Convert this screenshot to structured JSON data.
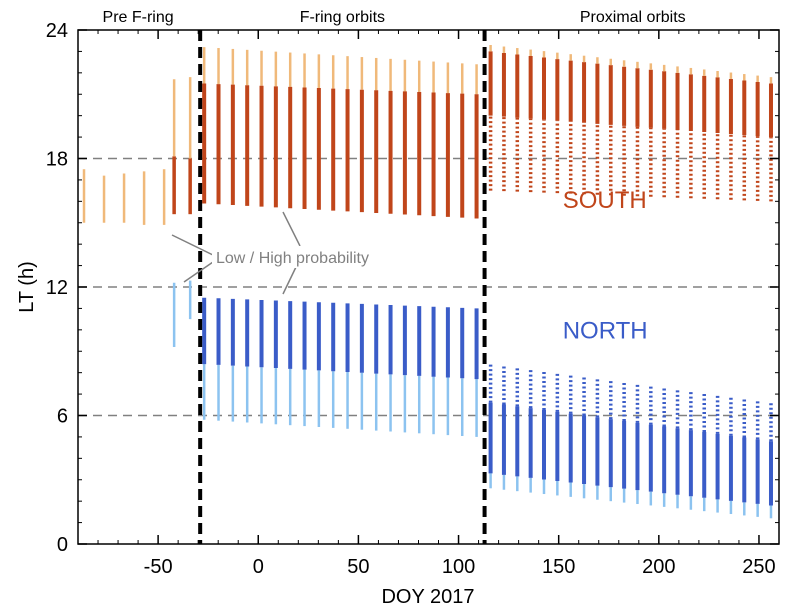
{
  "chart_data": {
    "type": "line",
    "xlabel": "DOY 2017",
    "ylabel": "LT (h)",
    "xlim": [
      -90,
      260
    ],
    "ylim": [
      0,
      24
    ],
    "xticks": [
      -50,
      0,
      50,
      100,
      150,
      200,
      250
    ],
    "yticks": [
      0,
      6,
      12,
      18,
      24
    ],
    "grid": false,
    "reference_lines_h": [
      6,
      12,
      18
    ],
    "phase_boundaries_x": [
      -29,
      113
    ],
    "phases": [
      {
        "label": "Pre F-ring",
        "x_center": -60
      },
      {
        "label": "F-ring orbits",
        "x_center": 42
      },
      {
        "label": "Proximal orbits",
        "x_center": 187
      }
    ],
    "region_labels": [
      {
        "text": "SOUTH",
        "color": "#c0451a",
        "x": 152,
        "y": 15.7
      },
      {
        "text": "NORTH",
        "color": "#3a5cc8",
        "x": 152,
        "y": 9.6
      }
    ],
    "annotation": {
      "text": "Low / High probability"
    },
    "colors": {
      "south_low": "#f0b97a",
      "south_high": "#c0451a",
      "north_low": "#8cc3f0",
      "north_high": "#3a5cc8",
      "reference": "#808080",
      "boundary": "#000000"
    },
    "series": [
      {
        "name": "South pre F-ring (low)",
        "x": [
          -87,
          -77,
          -67,
          -57,
          -47
        ],
        "y_low": [
          15.0,
          15.0,
          15.0,
          14.9,
          14.9
        ],
        "y_high": [
          17.5,
          17.2,
          17.3,
          17.4,
          17.5
        ]
      },
      {
        "name": "South transition (high)",
        "x": [
          -42,
          -34
        ],
        "y_low": [
          15.4,
          15.4
        ],
        "y_high": [
          18.1,
          18.0
        ]
      },
      {
        "name": "South transition (low extension)",
        "x": [
          -42,
          -34
        ],
        "y_low": [
          18.1,
          18.0
        ],
        "y_high": [
          21.7,
          21.8
        ]
      },
      {
        "name": "North transition (low)",
        "x": [
          -42,
          -34
        ],
        "y_low": [
          9.2,
          10.5
        ],
        "y_high": [
          12.2,
          12.3
        ]
      },
      {
        "name": "F-ring south",
        "x_start": -27,
        "x_end": 109,
        "count": 20,
        "high_bottom": [
          15.9,
          15.2
        ],
        "high_top": [
          21.5,
          21.0
        ],
        "low_top": [
          23.2,
          22.4
        ]
      },
      {
        "name": "F-ring north",
        "x_start": -27,
        "x_end": 109,
        "count": 20,
        "high_bottom": [
          8.4,
          7.7
        ],
        "high_top": [
          11.5,
          11.0
        ],
        "low_bottom": [
          5.8,
          5.0
        ]
      },
      {
        "name": "Proximal south",
        "x_start": 116,
        "x_end": 256,
        "count": 22,
        "high_bottom": [
          20.0,
          19.0
        ],
        "high_top": [
          23.0,
          21.5
        ],
        "dotted_bottom": [
          16.5,
          16.0
        ],
        "low_top": [
          23.3,
          21.8
        ]
      },
      {
        "name": "Proximal north",
        "x_start": 116,
        "x_end": 256,
        "count": 22,
        "high_bottom": [
          3.3,
          1.8
        ],
        "high_top": [
          8.4,
          6.6
        ],
        "low_bottom": [
          2.6,
          1.2
        ]
      }
    ]
  }
}
